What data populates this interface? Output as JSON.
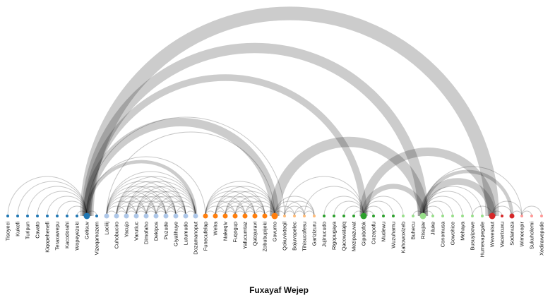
{
  "title": "Fuxayaf Wejep",
  "nodes": [
    {
      "name": "Tisoyeci",
      "color": "#1f77b4",
      "size": 1
    },
    {
      "name": "Kukefi",
      "color": "#1f77b4",
      "size": 1
    },
    {
      "name": "Turipun",
      "color": "#1f77b4",
      "size": 1
    },
    {
      "name": "Cavato",
      "color": "#1f77b4",
      "size": 1
    },
    {
      "name": "Kiqopehenefi",
      "color": "#1f77b4",
      "size": 1
    },
    {
      "name": "Teraxawepu",
      "color": "#1f77b4",
      "size": 1
    },
    {
      "name": "Kacodorahi",
      "color": "#1f77b4",
      "size": 1
    },
    {
      "name": "Wopeyezuki",
      "color": "#1f77b4",
      "size": 1
    },
    {
      "name": "Gelisuv",
      "color": "#1f77b4",
      "size": 3
    },
    {
      "name": "Vizeqamozem",
      "color": "#1f77b4",
      "size": 1
    },
    {
      "name": "Laciiij",
      "color": "#aec7e8",
      "size": 2
    },
    {
      "name": "Cuhobuciro",
      "color": "#aec7e8",
      "size": 2
    },
    {
      "name": "Yacujo",
      "color": "#aec7e8",
      "size": 2
    },
    {
      "name": "Varutiuc",
      "color": "#aec7e8",
      "size": 2
    },
    {
      "name": "Dimofaho",
      "color": "#aec7e8",
      "size": 2
    },
    {
      "name": "Dekipos",
      "color": "#aec7e8",
      "size": 2
    },
    {
      "name": "Puzude",
      "color": "#aec7e8",
      "size": 2
    },
    {
      "name": "Giyalihuye",
      "color": "#aec7e8",
      "size": 2
    },
    {
      "name": "Lutumudo",
      "color": "#aec7e8",
      "size": 2
    },
    {
      "name": "Dozamanoput",
      "color": "#aec7e8",
      "size": 2
    },
    {
      "name": "Funecufelap",
      "color": "#ff7f0e",
      "size": 2
    },
    {
      "name": "Welra",
      "color": "#ff7f0e",
      "size": 2
    },
    {
      "name": "Nakeqiv",
      "color": "#ff7f0e",
      "size": 2
    },
    {
      "name": "Fuqogup",
      "color": "#ff7f0e",
      "size": 2
    },
    {
      "name": "Yafucumtaz",
      "color": "#ff7f0e",
      "size": 2
    },
    {
      "name": "Qatojuravi",
      "color": "#ff7f0e",
      "size": 2
    },
    {
      "name": "Zobubupijeki",
      "color": "#ff7f0e",
      "size": 2
    },
    {
      "name": "Govumo",
      "color": "#ff7f0e",
      "size": 3
    },
    {
      "name": "Qokuvixteqil",
      "color": "#ffbb78",
      "size": 1
    },
    {
      "name": "Bojuvopelec",
      "color": "#ffbb78",
      "size": 1
    },
    {
      "name": "Tihisucofesu",
      "color": "#ffbb78",
      "size": 1
    },
    {
      "name": "Garizizuru",
      "color": "#ffbb78",
      "size": 1
    },
    {
      "name": "Jujinucudo",
      "color": "#2ca02c",
      "size": 1
    },
    {
      "name": "Rigopugaya",
      "color": "#2ca02c",
      "size": 1
    },
    {
      "name": "Qacowatajiq",
      "color": "#2ca02c",
      "size": 1
    },
    {
      "name": "Mezipazuvat",
      "color": "#2ca02c",
      "size": 1
    },
    {
      "name": "Gipobofok",
      "color": "#2ca02c",
      "size": 3
    },
    {
      "name": "Cozepofu",
      "color": "#2ca02c",
      "size": 1
    },
    {
      "name": "Mudewu",
      "color": "#2ca02c",
      "size": 1
    },
    {
      "name": "Wuzuhamu",
      "color": "#2ca02c",
      "size": 1
    },
    {
      "name": "Kahowoxizeb",
      "color": "#98df8a",
      "size": 1
    },
    {
      "name": "Buhecu",
      "color": "#98df8a",
      "size": 1
    },
    {
      "name": "Risujav",
      "color": "#98df8a",
      "size": 3
    },
    {
      "name": "Jiluke",
      "color": "#98df8a",
      "size": 1
    },
    {
      "name": "Conomusa",
      "color": "#98df8a",
      "size": 1
    },
    {
      "name": "Gowohice",
      "color": "#98df8a",
      "size": 1
    },
    {
      "name": "Mehaya",
      "color": "#98df8a",
      "size": 1
    },
    {
      "name": "Busuyipowe",
      "color": "#98df8a",
      "size": 1
    },
    {
      "name": "Humevapegale",
      "color": "#98df8a",
      "size": 1
    },
    {
      "name": "Wewesisut",
      "color": "#d62728",
      "size": 3
    },
    {
      "name": "Vacerixuxu",
      "color": "#d62728",
      "size": 1
    },
    {
      "name": "Sodanuza",
      "color": "#d62728",
      "size": 2
    },
    {
      "name": "Wimecopir",
      "color": "#ff9896",
      "size": 1
    },
    {
      "name": "Sukuholemi",
      "color": "#ff9896",
      "size": 1
    },
    {
      "name": "Xedirawepude",
      "color": "#ff9896",
      "size": 1
    }
  ],
  "links": [
    {
      "source": "Gelisuv",
      "target": "Wewesisut",
      "weight": 8
    },
    {
      "source": "Gelisuv",
      "target": "Risujav",
      "weight": 6
    },
    {
      "source": "Gelisuv",
      "target": "Govumo",
      "weight": 5
    },
    {
      "source": "Gelisuv",
      "target": "Gipobofok",
      "weight": 4
    },
    {
      "source": "Gelisuv",
      "target": "Dozamanoput",
      "weight": 2
    },
    {
      "source": "Gelisuv",
      "target": "Qokuvixteqil",
      "weight": 1
    },
    {
      "source": "Gelisuv",
      "target": "Tisoyeci",
      "weight": 1
    },
    {
      "source": "Gelisuv",
      "target": "Kukefi",
      "weight": 1
    },
    {
      "source": "Gelisuv",
      "target": "Turipun",
      "weight": 1
    },
    {
      "source": "Gelisuv",
      "target": "Cavato",
      "weight": 1
    },
    {
      "source": "Gelisuv",
      "target": "Kiqopehenefi",
      "weight": 1
    },
    {
      "source": "Gelisuv",
      "target": "Teraxawepu",
      "weight": 1
    },
    {
      "source": "Gelisuv",
      "target": "Kacodorahi",
      "weight": 1
    },
    {
      "source": "Gelisuv",
      "target": "Wopeyezuki",
      "weight": 1
    },
    {
      "source": "Gelisuv",
      "target": "Vizeqamozem",
      "weight": 1
    },
    {
      "source": "Gelisuv",
      "target": "Funecufelap",
      "weight": 1
    },
    {
      "source": "Laciiij",
      "target": "Govumo",
      "weight": 1
    },
    {
      "source": "Laciiij",
      "target": "Cuhobuciro",
      "weight": 1
    },
    {
      "source": "Laciiij",
      "target": "Yacujo",
      "weight": 1
    },
    {
      "source": "Laciiij",
      "target": "Varutiuc",
      "weight": 1
    },
    {
      "source": "Laciiij",
      "target": "Dimofaho",
      "weight": 1
    },
    {
      "source": "Laciiij",
      "target": "Dekipos",
      "weight": 1
    },
    {
      "source": "Laciiij",
      "target": "Puzude",
      "weight": 1
    },
    {
      "source": "Laciiij",
      "target": "Giyalihuye",
      "weight": 1
    },
    {
      "source": "Laciiij",
      "target": "Lutumudo",
      "weight": 1
    },
    {
      "source": "Laciiij",
      "target": "Dozamanoput",
      "weight": 1
    },
    {
      "source": "Cuhobuciro",
      "target": "Yacujo",
      "weight": 1
    },
    {
      "source": "Cuhobuciro",
      "target": "Varutiuc",
      "weight": 1
    },
    {
      "source": "Cuhobuciro",
      "target": "Dimofaho",
      "weight": 1
    },
    {
      "source": "Cuhobuciro",
      "target": "Dekipos",
      "weight": 1
    },
    {
      "source": "Cuhobuciro",
      "target": "Puzude",
      "weight": 1
    },
    {
      "source": "Cuhobuciro",
      "target": "Giyalihuye",
      "weight": 1
    },
    {
      "source": "Cuhobuciro",
      "target": "Lutumudo",
      "weight": 1
    },
    {
      "source": "Cuhobuciro",
      "target": "Dozamanoput",
      "weight": 1
    },
    {
      "source": "Yacujo",
      "target": "Varutiuc",
      "weight": 1
    },
    {
      "source": "Yacujo",
      "target": "Dimofaho",
      "weight": 1
    },
    {
      "source": "Yacujo",
      "target": "Dekipos",
      "weight": 1
    },
    {
      "source": "Yacujo",
      "target": "Puzude",
      "weight": 1
    },
    {
      "source": "Yacujo",
      "target": "Giyalihuye",
      "weight": 1
    },
    {
      "source": "Yacujo",
      "target": "Lutumudo",
      "weight": 1
    },
    {
      "source": "Yacujo",
      "target": "Dozamanoput",
      "weight": 1
    },
    {
      "source": "Varutiuc",
      "target": "Dimofaho",
      "weight": 1
    },
    {
      "source": "Varutiuc",
      "target": "Dekipos",
      "weight": 1
    },
    {
      "source": "Varutiuc",
      "target": "Puzude",
      "weight": 1
    },
    {
      "source": "Varutiuc",
      "target": "Giyalihuye",
      "weight": 1
    },
    {
      "source": "Varutiuc",
      "target": "Lutumudo",
      "weight": 1
    },
    {
      "source": "Varutiuc",
      "target": "Dozamanoput",
      "weight": 1
    },
    {
      "source": "Dimofaho",
      "target": "Dekipos",
      "weight": 1
    },
    {
      "source": "Dimofaho",
      "target": "Puzude",
      "weight": 1
    },
    {
      "source": "Dimofaho",
      "target": "Giyalihuye",
      "weight": 1
    },
    {
      "source": "Dimofaho",
      "target": "Lutumudo",
      "weight": 1
    },
    {
      "source": "Dimofaho",
      "target": "Dozamanoput",
      "weight": 1
    },
    {
      "source": "Dekipos",
      "target": "Puzude",
      "weight": 1
    },
    {
      "source": "Dekipos",
      "target": "Giyalihuye",
      "weight": 1
    },
    {
      "source": "Dekipos",
      "target": "Lutumudo",
      "weight": 1
    },
    {
      "source": "Dekipos",
      "target": "Dozamanoput",
      "weight": 1
    },
    {
      "source": "Puzude",
      "target": "Giyalihuye",
      "weight": 1
    },
    {
      "source": "Puzude",
      "target": "Lutumudo",
      "weight": 1
    },
    {
      "source": "Puzude",
      "target": "Dozamanoput",
      "weight": 1
    },
    {
      "source": "Giyalihuye",
      "target": "Lutumudo",
      "weight": 1
    },
    {
      "source": "Giyalihuye",
      "target": "Dozamanoput",
      "weight": 1
    },
    {
      "source": "Lutumudo",
      "target": "Dozamanoput",
      "weight": 1
    },
    {
      "source": "Funecufelap",
      "target": "Welra",
      "weight": 1
    },
    {
      "source": "Funecufelap",
      "target": "Nakeqiv",
      "weight": 1
    },
    {
      "source": "Funecufelap",
      "target": "Fuqogup",
      "weight": 1
    },
    {
      "source": "Funecufelap",
      "target": "Yafucumtaz",
      "weight": 1
    },
    {
      "source": "Funecufelap",
      "target": "Qatojuravi",
      "weight": 1
    },
    {
      "source": "Funecufelap",
      "target": "Zobubupijeki",
      "weight": 1
    },
    {
      "source": "Funecufelap",
      "target": "Govumo",
      "weight": 1
    },
    {
      "source": "Welra",
      "target": "Nakeqiv",
      "weight": 1
    },
    {
      "source": "Welra",
      "target": "Fuqogup",
      "weight": 1
    },
    {
      "source": "Welra",
      "target": "Yafucumtaz",
      "weight": 1
    },
    {
      "source": "Welra",
      "target": "Qatojuravi",
      "weight": 1
    },
    {
      "source": "Welra",
      "target": "Zobubupijeki",
      "weight": 1
    },
    {
      "source": "Welra",
      "target": "Govumo",
      "weight": 1
    },
    {
      "source": "Nakeqiv",
      "target": "Fuqogup",
      "weight": 1
    },
    {
      "source": "Nakeqiv",
      "target": "Yafucumtaz",
      "weight": 1
    },
    {
      "source": "Nakeqiv",
      "target": "Qatojuravi",
      "weight": 1
    },
    {
      "source": "Nakeqiv",
      "target": "Zobubupijeki",
      "weight": 1
    },
    {
      "source": "Nakeqiv",
      "target": "Govumo",
      "weight": 1
    },
    {
      "source": "Fuqogup",
      "target": "Yafucumtaz",
      "weight": 1
    },
    {
      "source": "Fuqogup",
      "target": "Qatojuravi",
      "weight": 1
    },
    {
      "source": "Fuqogup",
      "target": "Zobubupijeki",
      "weight": 1
    },
    {
      "source": "Fuqogup",
      "target": "Govumo",
      "weight": 1
    },
    {
      "source": "Yafucumtaz",
      "target": "Qatojuravi",
      "weight": 1
    },
    {
      "source": "Yafucumtaz",
      "target": "Zobubupijeki",
      "weight": 1
    },
    {
      "source": "Yafucumtaz",
      "target": "Govumo",
      "weight": 1
    },
    {
      "source": "Qatojuravi",
      "target": "Zobubupijeki",
      "weight": 1
    },
    {
      "source": "Qatojuravi",
      "target": "Govumo",
      "weight": 1
    },
    {
      "source": "Zobubupijeki",
      "target": "Govumo",
      "weight": 1
    },
    {
      "source": "Govumo",
      "target": "Risujav",
      "weight": 6
    },
    {
      "source": "Govumo",
      "target": "Qokuvixteqil",
      "weight": 1
    },
    {
      "source": "Govumo",
      "target": "Bojuvopelec",
      "weight": 1
    },
    {
      "source": "Govumo",
      "target": "Tihisucofesu",
      "weight": 1
    },
    {
      "source": "Govumo",
      "target": "Garizizuru",
      "weight": 1
    },
    {
      "source": "Qokuvixteqil",
      "target": "Bojuvopelec",
      "weight": 1
    },
    {
      "source": "Qokuvixteqil",
      "target": "Tihisucofesu",
      "weight": 1
    },
    {
      "source": "Qokuvixteqil",
      "target": "Garizizuru",
      "weight": 1
    },
    {
      "source": "Bojuvopelec",
      "target": "Tihisucofesu",
      "weight": 1
    },
    {
      "source": "Bojuvopelec",
      "target": "Garizizuru",
      "weight": 1
    },
    {
      "source": "Tihisucofesu",
      "target": "Garizizuru",
      "weight": 1
    },
    {
      "source": "Gipobofok",
      "target": "Wewesisut",
      "weight": 5
    },
    {
      "source": "Gipobofok",
      "target": "Risujav",
      "weight": 3
    },
    {
      "source": "Gipobofok",
      "target": "Qokuvixteqil",
      "weight": 1
    },
    {
      "source": "Gipobofok",
      "target": "Jujinucudo",
      "weight": 1
    },
    {
      "source": "Gipobofok",
      "target": "Rigopugaya",
      "weight": 1
    },
    {
      "source": "Gipobofok",
      "target": "Qacowatajiq",
      "weight": 1
    },
    {
      "source": "Gipobofok",
      "target": "Mezipazuvat",
      "weight": 1
    },
    {
      "source": "Gipobofok",
      "target": "Cozepofu",
      "weight": 1
    },
    {
      "source": "Gipobofok",
      "target": "Mudewu",
      "weight": 1
    },
    {
      "source": "Gipobofok",
      "target": "Wuzuhamu",
      "weight": 1
    },
    {
      "source": "Gipobofok",
      "target": "Kahowoxizeb",
      "weight": 1
    },
    {
      "source": "Gipobofok",
      "target": "Tihisucofesu",
      "weight": 1
    },
    {
      "source": "Risujav",
      "target": "Wewesisut",
      "weight": 4
    },
    {
      "source": "Risujav",
      "target": "Buhecu",
      "weight": 1
    },
    {
      "source": "Risujav",
      "target": "Jiluke",
      "weight": 1
    },
    {
      "source": "Risujav",
      "target": "Conomusa",
      "weight": 1
    },
    {
      "source": "Risujav",
      "target": "Gowohice",
      "weight": 1
    },
    {
      "source": "Risujav",
      "target": "Mehaya",
      "weight": 1
    },
    {
      "source": "Risujav",
      "target": "Busuyipowe",
      "weight": 1
    },
    {
      "source": "Risujav",
      "target": "Humevapegale",
      "weight": 1
    },
    {
      "source": "Risujav",
      "target": "Sodanuza",
      "weight": 2
    },
    {
      "source": "Risujav",
      "target": "Wimecopir",
      "weight": 1
    },
    {
      "source": "Wewesisut",
      "target": "Vacerixuxu",
      "weight": 1
    },
    {
      "source": "Wewesisut",
      "target": "Sodanuza",
      "weight": 1
    },
    {
      "source": "Wewesisut",
      "target": "Wimecopir",
      "weight": 1
    },
    {
      "source": "Wewesisut",
      "target": "Busuyipowe",
      "weight": 1
    },
    {
      "source": "Sodanuza",
      "target": "Wimecopir",
      "weight": 1
    },
    {
      "source": "Wimecopir",
      "target": "Xedirawepude",
      "weight": 1
    },
    {
      "source": "Wimecopir",
      "target": "Sukuholemi",
      "weight": 1
    }
  ]
}
